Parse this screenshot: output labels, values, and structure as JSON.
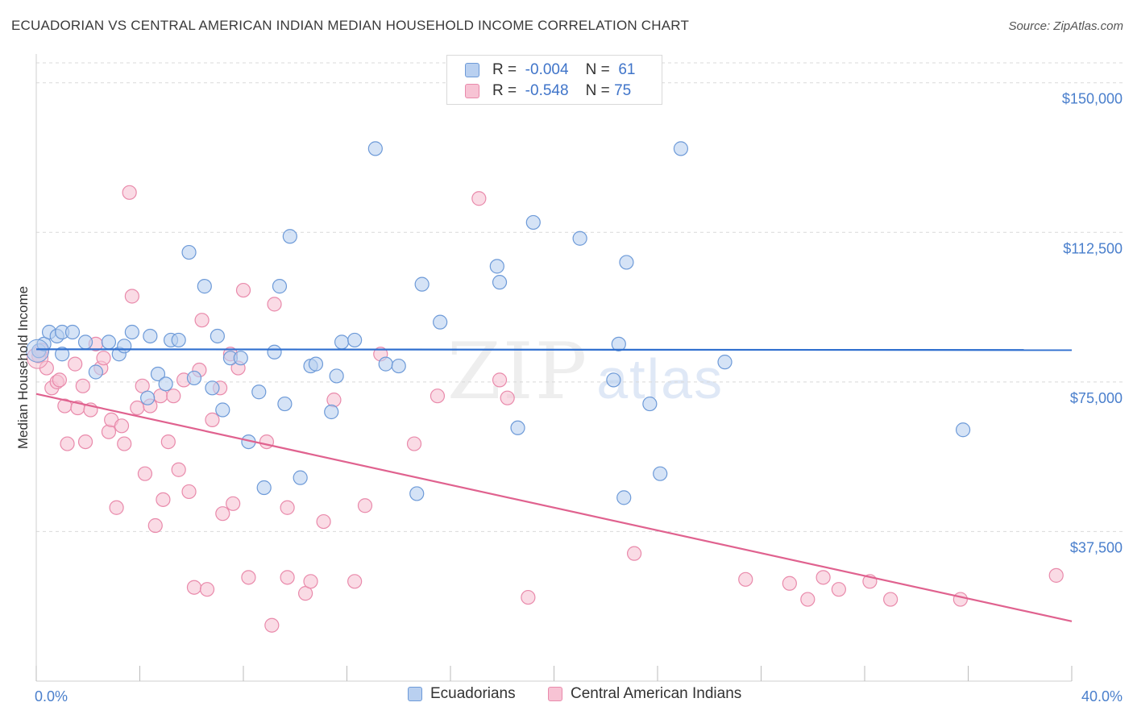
{
  "title": "ECUADORIAN VS CENTRAL AMERICAN INDIAN MEDIAN HOUSEHOLD INCOME CORRELATION CHART",
  "source": "Source: ZipAtlas.com",
  "watermark": {
    "zip": "ZIP",
    "atlas": "atlas"
  },
  "legend_top": {
    "rows": [
      {
        "r_label": "R =",
        "r_value": "-0.004",
        "n_label": "N =",
        "n_value": "61"
      },
      {
        "r_label": "R =",
        "r_value": "-0.548",
        "n_label": "N =",
        "n_value": "75"
      }
    ]
  },
  "legend_bottom": {
    "items": [
      {
        "label": "Ecuadorians"
      },
      {
        "label": "Central American Indians"
      }
    ]
  },
  "colors": {
    "blue_fill": "#b9d0f0",
    "blue_stroke": "#6d9ad8",
    "blue_line": "#2f6fcf",
    "pink_fill": "#f7c3d4",
    "pink_stroke": "#e98aab",
    "pink_line": "#e0628f",
    "tick_text": "#4a7fcc",
    "grid": "#d9d9d9"
  },
  "chart_data": {
    "type": "scatter",
    "title": "ECUADORIAN VS CENTRAL AMERICAN INDIAN MEDIAN HOUSEHOLD INCOME CORRELATION CHART",
    "xlabel": "",
    "ylabel": "Median Household Income",
    "xlim": [
      0,
      40
    ],
    "ylim": [
      0,
      155000
    ],
    "x_tick_labels": [
      "0.0%",
      "40.0%"
    ],
    "y_ticks": [
      37500,
      75000,
      112500,
      150000
    ],
    "y_tick_labels": [
      "$37,500",
      "$75,000",
      "$112,500",
      "$150,000"
    ],
    "grid": true,
    "series": [
      {
        "name": "Ecuadorians",
        "color": "#6d9ad8",
        "trend": {
          "x": [
            0,
            40
          ],
          "y": [
            83200,
            83000
          ]
        },
        "points": [
          [
            0.1,
            82800
          ],
          [
            0.3,
            84500
          ],
          [
            0.5,
            87500
          ],
          [
            0.8,
            86500
          ],
          [
            1.0,
            82000
          ],
          [
            1.0,
            87500
          ],
          [
            1.4,
            87500
          ],
          [
            1.9,
            85000
          ],
          [
            2.3,
            77500
          ],
          [
            2.8,
            85000
          ],
          [
            3.2,
            82000
          ],
          [
            3.4,
            84000
          ],
          [
            3.7,
            87500
          ],
          [
            4.3,
            71000
          ],
          [
            4.4,
            86500
          ],
          [
            4.7,
            77000
          ],
          [
            5.0,
            74500
          ],
          [
            5.2,
            85500
          ],
          [
            5.5,
            85500
          ],
          [
            5.9,
            107500
          ],
          [
            6.1,
            76000
          ],
          [
            6.5,
            99000
          ],
          [
            6.8,
            73500
          ],
          [
            7.0,
            86500
          ],
          [
            7.2,
            68000
          ],
          [
            7.5,
            81000
          ],
          [
            7.9,
            81000
          ],
          [
            8.2,
            60000
          ],
          [
            8.6,
            72500
          ],
          [
            8.8,
            48500
          ],
          [
            9.2,
            82500
          ],
          [
            9.4,
            99000
          ],
          [
            9.6,
            69500
          ],
          [
            9.8,
            111500
          ],
          [
            10.2,
            51000
          ],
          [
            10.6,
            79000
          ],
          [
            10.8,
            79500
          ],
          [
            11.4,
            67500
          ],
          [
            11.6,
            76500
          ],
          [
            11.8,
            85000
          ],
          [
            12.3,
            85500
          ],
          [
            13.1,
            133500
          ],
          [
            13.5,
            79500
          ],
          [
            14.0,
            79000
          ],
          [
            14.7,
            47000
          ],
          [
            14.9,
            99500
          ],
          [
            15.6,
            90000
          ],
          [
            17.9,
            100000
          ],
          [
            17.8,
            104000
          ],
          [
            18.6,
            63500
          ],
          [
            19.2,
            115000
          ],
          [
            21.0,
            111000
          ],
          [
            22.3,
            75500
          ],
          [
            22.5,
            84500
          ],
          [
            22.7,
            46000
          ],
          [
            22.8,
            105000
          ],
          [
            23.7,
            69500
          ],
          [
            24.1,
            52000
          ],
          [
            24.9,
            133500
          ],
          [
            26.6,
            80000
          ],
          [
            35.8,
            63000
          ]
        ]
      },
      {
        "name": "Central American Indians",
        "color": "#e98aab",
        "trend": {
          "x": [
            0,
            40
          ],
          "y": [
            72000,
            15000
          ]
        },
        "points": [
          [
            0.1,
            81500
          ],
          [
            0.2,
            83000
          ],
          [
            0.4,
            78500
          ],
          [
            0.6,
            73500
          ],
          [
            0.8,
            75000
          ],
          [
            0.9,
            75500
          ],
          [
            1.1,
            69000
          ],
          [
            1.2,
            59500
          ],
          [
            1.5,
            79500
          ],
          [
            1.6,
            68500
          ],
          [
            1.8,
            74000
          ],
          [
            1.9,
            60000
          ],
          [
            2.1,
            68000
          ],
          [
            2.3,
            84500
          ],
          [
            2.5,
            78500
          ],
          [
            2.6,
            81000
          ],
          [
            2.8,
            62500
          ],
          [
            2.9,
            65500
          ],
          [
            3.1,
            43500
          ],
          [
            3.3,
            64000
          ],
          [
            3.4,
            59500
          ],
          [
            3.6,
            122500
          ],
          [
            3.7,
            96500
          ],
          [
            3.9,
            68500
          ],
          [
            4.1,
            74000
          ],
          [
            4.2,
            52000
          ],
          [
            4.4,
            69000
          ],
          [
            4.6,
            39000
          ],
          [
            4.8,
            71500
          ],
          [
            4.9,
            45500
          ],
          [
            5.1,
            60000
          ],
          [
            5.3,
            71500
          ],
          [
            5.5,
            53000
          ],
          [
            5.7,
            75500
          ],
          [
            5.9,
            47500
          ],
          [
            6.1,
            23500
          ],
          [
            6.3,
            78000
          ],
          [
            6.4,
            90500
          ],
          [
            6.6,
            23000
          ],
          [
            6.8,
            65500
          ],
          [
            7.1,
            73500
          ],
          [
            7.2,
            42000
          ],
          [
            7.5,
            82000
          ],
          [
            7.6,
            44500
          ],
          [
            7.8,
            78500
          ],
          [
            8.0,
            98000
          ],
          [
            8.2,
            26000
          ],
          [
            8.9,
            60000
          ],
          [
            9.1,
            14000
          ],
          [
            9.2,
            94500
          ],
          [
            9.7,
            26000
          ],
          [
            9.7,
            43500
          ],
          [
            10.4,
            22000
          ],
          [
            10.6,
            25000
          ],
          [
            11.1,
            40000
          ],
          [
            11.5,
            70500
          ],
          [
            12.3,
            25000
          ],
          [
            12.7,
            44000
          ],
          [
            13.3,
            82000
          ],
          [
            14.6,
            59500
          ],
          [
            15.5,
            71500
          ],
          [
            17.1,
            121000
          ],
          [
            17.9,
            75500
          ],
          [
            18.2,
            71000
          ],
          [
            19.0,
            21000
          ],
          [
            23.1,
            32000
          ],
          [
            27.4,
            25500
          ],
          [
            29.1,
            24500
          ],
          [
            29.8,
            20500
          ],
          [
            30.4,
            26000
          ],
          [
            31.0,
            23000
          ],
          [
            32.2,
            25000
          ],
          [
            33.0,
            20500
          ],
          [
            35.7,
            20500
          ],
          [
            39.4,
            26500
          ]
        ]
      }
    ]
  }
}
